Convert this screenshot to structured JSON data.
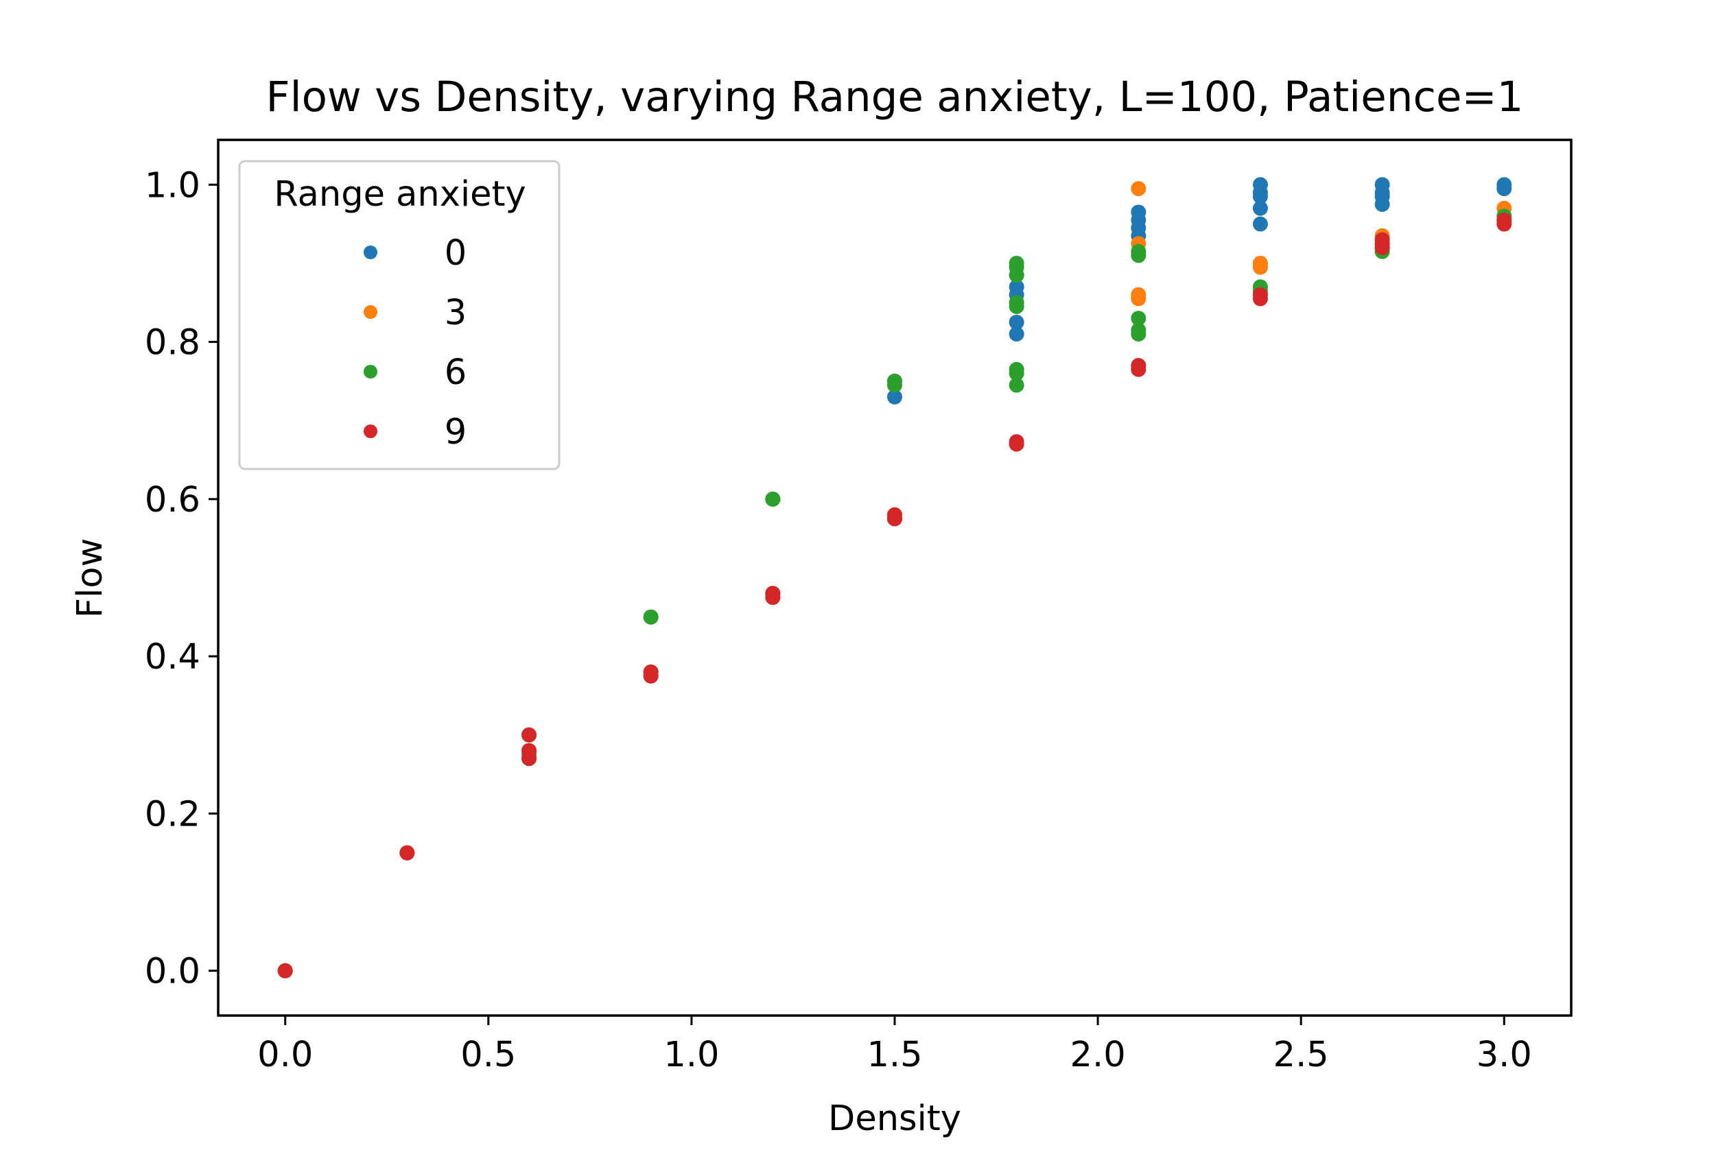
{
  "chart_data": {
    "type": "scatter",
    "title": "Flow vs Density, varying Range anxiety, L=100, Patience=1",
    "xlabel": "Density",
    "ylabel": "Flow",
    "xlim": [
      -0.165,
      3.165
    ],
    "ylim": [
      -0.057,
      1.057
    ],
    "x_ticks": [
      "0.0",
      "0.5",
      "1.0",
      "1.5",
      "2.0",
      "2.5",
      "3.0"
    ],
    "y_ticks": [
      "0.0",
      "0.2",
      "0.4",
      "0.6",
      "0.8",
      "1.0"
    ],
    "grid": false,
    "legend": {
      "title": "Range anxiety",
      "placement": "upper-left"
    },
    "series": [
      {
        "name": "0",
        "color": "#1f77b4",
        "points": [
          [
            0.0,
            0.0
          ],
          [
            0.3,
            0.15
          ],
          [
            0.6,
            0.27
          ],
          [
            0.6,
            0.28
          ],
          [
            0.6,
            0.3
          ],
          [
            0.9,
            0.375
          ],
          [
            0.9,
            0.45
          ],
          [
            1.2,
            0.48
          ],
          [
            1.2,
            0.6
          ],
          [
            1.5,
            0.575
          ],
          [
            1.5,
            0.73
          ],
          [
            1.5,
            0.75
          ],
          [
            1.8,
            0.81
          ],
          [
            1.8,
            0.825
          ],
          [
            1.8,
            0.85
          ],
          [
            1.8,
            0.86
          ],
          [
            1.8,
            0.87
          ],
          [
            2.1,
            0.935
          ],
          [
            2.1,
            0.945
          ],
          [
            2.1,
            0.955
          ],
          [
            2.1,
            0.965
          ],
          [
            2.4,
            0.95
          ],
          [
            2.4,
            0.97
          ],
          [
            2.4,
            0.985
          ],
          [
            2.4,
            0.99
          ],
          [
            2.4,
            1.0
          ],
          [
            2.7,
            0.975
          ],
          [
            2.7,
            0.985
          ],
          [
            2.7,
            0.99
          ],
          [
            2.7,
            1.0
          ],
          [
            3.0,
            0.995
          ],
          [
            3.0,
            1.0
          ]
        ]
      },
      {
        "name": "3",
        "color": "#ff7f0e",
        "points": [
          [
            0.0,
            0.0
          ],
          [
            0.3,
            0.15
          ],
          [
            0.6,
            0.28
          ],
          [
            0.6,
            0.3
          ],
          [
            0.9,
            0.38
          ],
          [
            0.9,
            0.45
          ],
          [
            1.2,
            0.475
          ],
          [
            1.2,
            0.6
          ],
          [
            1.5,
            0.58
          ],
          [
            1.5,
            0.75
          ],
          [
            1.8,
            0.67
          ],
          [
            1.8,
            0.885
          ],
          [
            2.1,
            0.855
          ],
          [
            2.1,
            0.86
          ],
          [
            2.1,
            0.925
          ],
          [
            2.1,
            0.995
          ],
          [
            2.4,
            0.895
          ],
          [
            2.4,
            0.9
          ],
          [
            2.7,
            0.925
          ],
          [
            2.7,
            0.935
          ],
          [
            3.0,
            0.96
          ],
          [
            3.0,
            0.97
          ]
        ]
      },
      {
        "name": "6",
        "color": "#2ca02c",
        "points": [
          [
            0.0,
            0.0
          ],
          [
            0.3,
            0.15
          ],
          [
            0.6,
            0.275
          ],
          [
            0.6,
            0.3
          ],
          [
            0.9,
            0.38
          ],
          [
            0.9,
            0.45
          ],
          [
            1.2,
            0.48
          ],
          [
            1.2,
            0.6
          ],
          [
            1.5,
            0.575
          ],
          [
            1.5,
            0.75
          ],
          [
            1.5,
            0.745
          ],
          [
            1.8,
            0.745
          ],
          [
            1.8,
            0.76
          ],
          [
            1.8,
            0.765
          ],
          [
            1.8,
            0.845
          ],
          [
            1.8,
            0.85
          ],
          [
            1.8,
            0.885
          ],
          [
            1.8,
            0.895
          ],
          [
            1.8,
            0.9
          ],
          [
            2.1,
            0.81
          ],
          [
            2.1,
            0.815
          ],
          [
            2.1,
            0.83
          ],
          [
            2.1,
            0.91
          ],
          [
            2.1,
            0.915
          ],
          [
            2.4,
            0.865
          ],
          [
            2.4,
            0.87
          ],
          [
            2.7,
            0.915
          ],
          [
            2.7,
            0.92
          ],
          [
            3.0,
            0.955
          ],
          [
            3.0,
            0.96
          ]
        ]
      },
      {
        "name": "9",
        "color": "#d62728",
        "points": [
          [
            0.0,
            0.0
          ],
          [
            0.3,
            0.15
          ],
          [
            0.6,
            0.27
          ],
          [
            0.6,
            0.28
          ],
          [
            0.6,
            0.3
          ],
          [
            0.9,
            0.375
          ],
          [
            0.9,
            0.38
          ],
          [
            1.2,
            0.475
          ],
          [
            1.2,
            0.48
          ],
          [
            1.5,
            0.575
          ],
          [
            1.5,
            0.58
          ],
          [
            1.8,
            0.67
          ],
          [
            1.8,
            0.673
          ],
          [
            2.1,
            0.765
          ],
          [
            2.1,
            0.77
          ],
          [
            2.4,
            0.855
          ],
          [
            2.4,
            0.86
          ],
          [
            2.7,
            0.92
          ],
          [
            2.7,
            0.925
          ],
          [
            2.7,
            0.93
          ],
          [
            3.0,
            0.95
          ],
          [
            3.0,
            0.955
          ]
        ]
      }
    ]
  }
}
